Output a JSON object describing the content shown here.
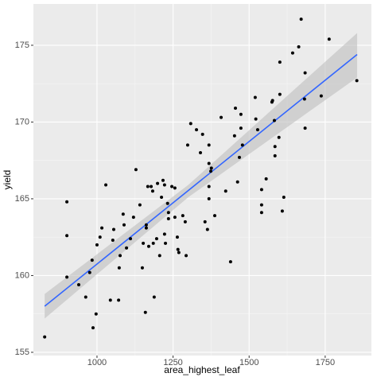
{
  "chart_data": {
    "type": "scatter",
    "xlabel": "area_highest_leaf",
    "ylabel": "yield",
    "xlim": [
      791,
      1902
    ],
    "ylim": [
      154.79,
      177.69
    ],
    "xticks": [
      {
        "value": 1000,
        "label": "1000"
      },
      {
        "value": 1250,
        "label": "1250"
      },
      {
        "value": 1500,
        "label": "1500"
      },
      {
        "value": 1750,
        "label": "1750"
      }
    ],
    "yticks": [
      155,
      160,
      165,
      170,
      175
    ],
    "grid": true,
    "color": "#000000",
    "x": [
      828,
      901,
      901,
      901,
      940,
      963,
      976,
      984,
      987,
      997,
      1000,
      1010,
      1016,
      1029,
      1044,
      1052,
      1055,
      1071,
      1073,
      1076,
      1086,
      1089,
      1097,
      1110,
      1120,
      1128,
      1141,
      1149,
      1152,
      1159,
      1162,
      1162,
      1167,
      1170,
      1178,
      1183,
      1185,
      1188,
      1196,
      1199,
      1206,
      1212,
      1217,
      1222,
      1222,
      1225,
      1232,
      1235,
      1235,
      1246,
      1256,
      1256,
      1264,
      1266,
      1269,
      1282,
      1290,
      1298,
      1293,
      1308,
      1327,
      1340,
      1347,
      1355,
      1363,
      1368,
      1368,
      1368,
      1368,
      1374,
      1376,
      1387,
      1408,
      1423,
      1439,
      1452,
      1455,
      1462,
      1468,
      1473,
      1473,
      1478,
      1520,
      1522,
      1528,
      1541,
      1541,
      1541,
      1556,
      1575,
      1577,
      1583,
      1585,
      1585,
      1598,
      1601,
      1609,
      1614,
      1671,
      1663,
      1643,
      1601,
      1684,
      1763,
      1854,
      1682,
      1684,
      1737
    ],
    "y": [
      156.0,
      164.8,
      162.6,
      159.9,
      159.4,
      158.6,
      160.2,
      161.0,
      156.6,
      157.5,
      162.0,
      162.5,
      163.1,
      165.9,
      158.4,
      162.3,
      163.0,
      158.4,
      160.5,
      161.3,
      164.0,
      163.3,
      161.8,
      162.4,
      163.8,
      166.9,
      164.6,
      160.5,
      162.1,
      157.6,
      163.1,
      163.3,
      165.8,
      161.9,
      165.8,
      165.5,
      162.1,
      158.6,
      162.4,
      166.0,
      161.3,
      165.1,
      166.2,
      165.9,
      162.7,
      162.1,
      164.7,
      164.1,
      163.7,
      165.8,
      165.7,
      163.8,
      162.5,
      161.7,
      161.5,
      163.9,
      163.5,
      168.5,
      161.3,
      169.9,
      169.5,
      168.0,
      169.2,
      163.5,
      163.0,
      165.0,
      168.5,
      167.3,
      165.8,
      166.8,
      167.0,
      163.9,
      170.3,
      165.5,
      160.9,
      169.1,
      170.9,
      166.1,
      167.7,
      169.6,
      170.5,
      168.5,
      171.6,
      170.2,
      169.5,
      164.6,
      165.6,
      164.1,
      166.3,
      171.3,
      171.4,
      170.1,
      168.4,
      167.8,
      169.0,
      171.8,
      164.2,
      165.1,
      176.7,
      174.9,
      174.5,
      173.9,
      173.2,
      175.4,
      172.7,
      171.5,
      169.6,
      171.7
    ],
    "fit": {
      "color": "#3366ff",
      "x": [
        828,
        1855
      ],
      "y": [
        158.0,
        174.4
      ]
    },
    "band": {
      "color": "#bebebe",
      "x": [
        828,
        1300,
        1855
      ],
      "lower": [
        157.2,
        165.1,
        172.9
      ],
      "upper": [
        158.8,
        165.9,
        175.8
      ]
    }
  }
}
